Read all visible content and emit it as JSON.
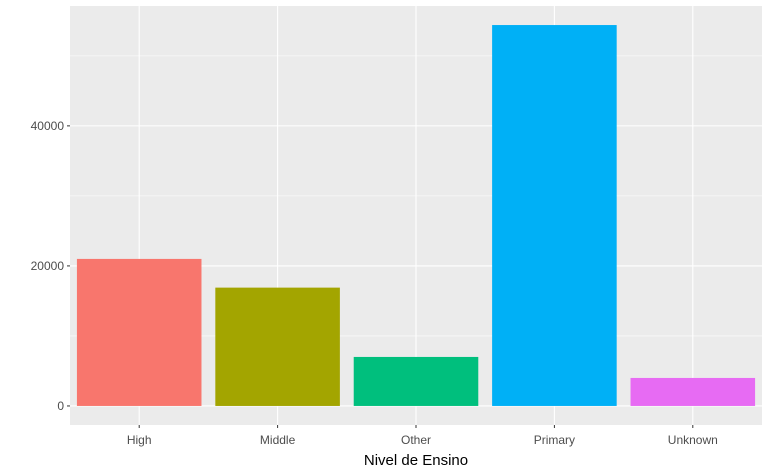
{
  "chart_data": {
    "type": "bar",
    "title": "",
    "xlabel": "Nivel de Ensino",
    "ylabel": "",
    "categories": [
      "High",
      "Middle",
      "Other",
      "Primary",
      "Unknown"
    ],
    "values": [
      21000,
      16900,
      7000,
      54400,
      4000
    ],
    "colors": [
      "#F8766D",
      "#A3A500",
      "#00BF7D",
      "#00B0F6",
      "#E76BF3"
    ],
    "yticks": [
      0,
      20000,
      40000
    ],
    "ytick_labels": [
      "0",
      "20000",
      "40000"
    ],
    "ylim": [
      -2720,
      57120
    ],
    "grid": true,
    "legend": "none"
  }
}
